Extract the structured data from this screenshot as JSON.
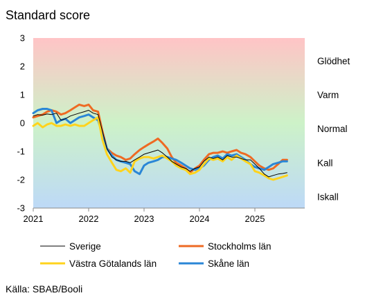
{
  "chart_data": {
    "type": "line",
    "title": "Standard score",
    "source": "Källa: SBAB/Booli",
    "ylim": [
      -3,
      3
    ],
    "xlim": [
      2021.0,
      2025.9
    ],
    "y_ticks": [
      "3",
      "2",
      "1",
      "0",
      "-1",
      "-2",
      "-3"
    ],
    "y_tick_values": [
      3,
      2,
      1,
      0,
      -1,
      -2,
      -3
    ],
    "x_ticks": [
      "2021",
      "2022",
      "2023",
      "2024",
      "2025"
    ],
    "x_tick_values": [
      2021,
      2022,
      2023,
      2024,
      2025
    ],
    "background": {
      "top_color": "#ffc4c6",
      "middle_color": "#cdf2c8",
      "bottom_color": "#bdd9f7"
    },
    "zones": [
      {
        "label": "Glödhet",
        "y": 2.2
      },
      {
        "label": "Varm",
        "y": 1.0
      },
      {
        "label": "Normal",
        "y": -0.2
      },
      {
        "label": "Kall",
        "y": -1.4
      },
      {
        "label": "Iskall",
        "y": -2.6
      }
    ],
    "series": [
      {
        "name": "Sverige",
        "color": "#000000",
        "width": 1,
        "x": [
          2021.0,
          2021.08,
          2021.17,
          2021.25,
          2021.33,
          2021.42,
          2021.5,
          2021.58,
          2021.67,
          2021.75,
          2021.83,
          2021.92,
          2022.0,
          2022.08,
          2022.17,
          2022.25,
          2022.33,
          2022.42,
          2022.5,
          2022.58,
          2022.67,
          2022.75,
          2022.83,
          2022.92,
          2023.0,
          2023.08,
          2023.17,
          2023.25,
          2023.33,
          2023.42,
          2023.5,
          2023.58,
          2023.67,
          2023.75,
          2023.83,
          2023.92,
          2024.0,
          2024.08,
          2024.17,
          2024.25,
          2024.33,
          2024.42,
          2024.5,
          2024.58,
          2024.67,
          2024.75,
          2024.83,
          2024.92,
          2025.0,
          2025.08,
          2025.17,
          2025.25,
          2025.33,
          2025.42,
          2025.5,
          2025.58
        ],
        "values": [
          0.25,
          0.3,
          0.28,
          0.32,
          0.3,
          0.35,
          0.1,
          0.15,
          0.25,
          0.3,
          0.35,
          0.4,
          0.45,
          0.35,
          0.3,
          -0.3,
          -0.9,
          -1.2,
          -1.3,
          -1.35,
          -1.35,
          -1.4,
          -1.3,
          -1.2,
          -1.1,
          -1.05,
          -1.0,
          -0.95,
          -1.05,
          -1.2,
          -1.35,
          -1.45,
          -1.55,
          -1.6,
          -1.7,
          -1.6,
          -1.55,
          -1.35,
          -1.2,
          -1.25,
          -1.2,
          -1.3,
          -1.15,
          -1.2,
          -1.2,
          -1.25,
          -1.3,
          -1.3,
          -1.45,
          -1.6,
          -1.8,
          -1.9,
          -1.85,
          -1.8,
          -1.78,
          -1.75
        ]
      },
      {
        "name": "Stockholms län",
        "color": "#ee6a23",
        "width": 3,
        "x": [
          2021.0,
          2021.08,
          2021.17,
          2021.25,
          2021.33,
          2021.42,
          2021.5,
          2021.58,
          2021.67,
          2021.75,
          2021.83,
          2021.92,
          2022.0,
          2022.08,
          2022.17,
          2022.25,
          2022.33,
          2022.42,
          2022.5,
          2022.58,
          2022.67,
          2022.75,
          2022.83,
          2022.92,
          2023.0,
          2023.08,
          2023.17,
          2023.25,
          2023.33,
          2023.42,
          2023.5,
          2023.58,
          2023.67,
          2023.75,
          2023.83,
          2023.92,
          2024.0,
          2024.08,
          2024.17,
          2024.25,
          2024.33,
          2024.42,
          2024.5,
          2024.58,
          2024.67,
          2024.75,
          2024.83,
          2024.92,
          2025.0,
          2025.08,
          2025.17,
          2025.25,
          2025.33,
          2025.42,
          2025.5,
          2025.58
        ],
        "values": [
          0.2,
          0.25,
          0.3,
          0.4,
          0.45,
          0.4,
          0.3,
          0.35,
          0.45,
          0.55,
          0.65,
          0.6,
          0.65,
          0.45,
          0.4,
          -0.3,
          -0.9,
          -1.05,
          -1.15,
          -1.2,
          -1.3,
          -1.25,
          -1.1,
          -0.95,
          -0.85,
          -0.75,
          -0.65,
          -0.55,
          -0.7,
          -0.9,
          -1.2,
          -1.4,
          -1.5,
          -1.6,
          -1.75,
          -1.6,
          -1.5,
          -1.3,
          -1.1,
          -1.05,
          -1.05,
          -1.0,
          -1.05,
          -1.0,
          -0.95,
          -1.05,
          -1.1,
          -1.2,
          -1.35,
          -1.5,
          -1.6,
          -1.65,
          -1.6,
          -1.45,
          -1.3,
          -1.3
        ]
      },
      {
        "name": "Västra Götalands län",
        "color": "#ffd31c",
        "width": 3,
        "x": [
          2021.0,
          2021.08,
          2021.17,
          2021.25,
          2021.33,
          2021.42,
          2021.5,
          2021.58,
          2021.67,
          2021.75,
          2021.83,
          2021.92,
          2022.0,
          2022.08,
          2022.17,
          2022.25,
          2022.33,
          2022.42,
          2022.5,
          2022.58,
          2022.67,
          2022.75,
          2022.83,
          2022.92,
          2023.0,
          2023.08,
          2023.17,
          2023.25,
          2023.33,
          2023.42,
          2023.5,
          2023.58,
          2023.67,
          2023.75,
          2023.83,
          2023.92,
          2024.0,
          2024.08,
          2024.17,
          2024.25,
          2024.33,
          2024.42,
          2024.5,
          2024.58,
          2024.67,
          2024.75,
          2024.83,
          2024.92,
          2025.0,
          2025.08,
          2025.17,
          2025.25,
          2025.33,
          2025.42,
          2025.5,
          2025.58
        ],
        "values": [
          -0.1,
          0.0,
          -0.15,
          -0.05,
          0.0,
          -0.1,
          -0.1,
          -0.05,
          -0.1,
          -0.05,
          -0.1,
          -0.1,
          0.0,
          0.1,
          0.2,
          -0.6,
          -1.1,
          -1.4,
          -1.65,
          -1.7,
          -1.6,
          -1.75,
          -1.35,
          -1.25,
          -1.2,
          -1.2,
          -1.25,
          -1.2,
          -1.15,
          -1.25,
          -1.35,
          -1.5,
          -1.6,
          -1.65,
          -1.8,
          -1.75,
          -1.65,
          -1.45,
          -1.25,
          -1.3,
          -1.25,
          -1.35,
          -1.2,
          -1.3,
          -1.15,
          -1.25,
          -1.35,
          -1.45,
          -1.7,
          -1.75,
          -1.85,
          -1.95,
          -2.0,
          -1.95,
          -1.9,
          -1.85
        ]
      },
      {
        "name": "Skåne län",
        "color": "#2a86d6",
        "width": 3,
        "x": [
          2021.0,
          2021.08,
          2021.17,
          2021.25,
          2021.33,
          2021.42,
          2021.5,
          2021.58,
          2021.67,
          2021.75,
          2021.83,
          2021.92,
          2022.0,
          2022.08,
          2022.17,
          2022.25,
          2022.33,
          2022.42,
          2022.5,
          2022.58,
          2022.67,
          2022.75,
          2022.83,
          2022.92,
          2023.0,
          2023.08,
          2023.17,
          2023.25,
          2023.33,
          2023.42,
          2023.5,
          2023.58,
          2023.67,
          2023.75,
          2023.83,
          2023.92,
          2024.0,
          2024.08,
          2024.17,
          2024.25,
          2024.33,
          2024.42,
          2024.5,
          2024.58,
          2024.67,
          2024.75,
          2024.83,
          2024.92,
          2025.0,
          2025.08,
          2025.17,
          2025.25,
          2025.33,
          2025.42,
          2025.5,
          2025.58
        ],
        "values": [
          0.35,
          0.45,
          0.5,
          0.5,
          0.45,
          0.0,
          0.1,
          0.15,
          0.0,
          0.1,
          0.2,
          0.25,
          0.3,
          0.2,
          0.1,
          -0.4,
          -0.9,
          -1.15,
          -1.3,
          -1.35,
          -1.4,
          -1.45,
          -1.7,
          -1.8,
          -1.5,
          -1.4,
          -1.35,
          -1.3,
          -1.2,
          -1.2,
          -1.25,
          -1.3,
          -1.4,
          -1.5,
          -1.6,
          -1.65,
          -1.6,
          -1.5,
          -1.3,
          -1.2,
          -1.15,
          -1.25,
          -1.1,
          -1.15,
          -1.1,
          -1.2,
          -1.3,
          -1.45,
          -1.55,
          -1.6,
          -1.65,
          -1.55,
          -1.45,
          -1.4,
          -1.35,
          -1.35
        ]
      }
    ],
    "legend": [
      {
        "name": "Sverige",
        "color": "#000000",
        "width": 1
      },
      {
        "name": "Stockholms län",
        "color": "#ee6a23",
        "width": 3
      },
      {
        "name": "Västra Götalands län",
        "color": "#ffd31c",
        "width": 3
      },
      {
        "name": "Skåne län",
        "color": "#2a86d6",
        "width": 3
      }
    ]
  }
}
